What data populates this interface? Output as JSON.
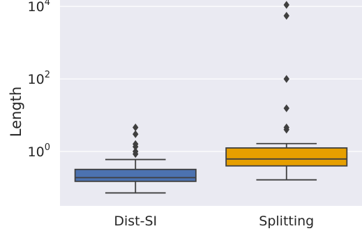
{
  "chart_data": {
    "type": "box",
    "ylabel": "Length",
    "xlabel": "",
    "yscale": "log",
    "ylim": [
      0.0316,
      15000
    ],
    "yticks": [
      {
        "base": "10",
        "exp": "0",
        "value": 1
      },
      {
        "base": "10",
        "exp": "2",
        "value": 100
      },
      {
        "base": "10",
        "exp": "4",
        "value": 10000
      }
    ],
    "grid": true,
    "categories": [
      "Dist-SI",
      "Splitting"
    ],
    "boxes": [
      {
        "name": "Dist-SI",
        "color": "#4c72b0",
        "whisker_low": 0.072,
        "q1": 0.15,
        "median": 0.19,
        "q3": 0.32,
        "whisker_high": 0.6,
        "outliers": [
          0.85,
          1.0,
          1.35,
          1.6,
          3.0,
          4.6
        ]
      },
      {
        "name": "Splitting",
        "color": "#e69f00",
        "whisker_low": 0.165,
        "q1": 0.4,
        "median": 0.62,
        "q3": 1.25,
        "whisker_high": 1.65,
        "outliers": [
          4.0,
          4.6,
          15.5,
          100,
          5500,
          11000
        ]
      }
    ]
  }
}
